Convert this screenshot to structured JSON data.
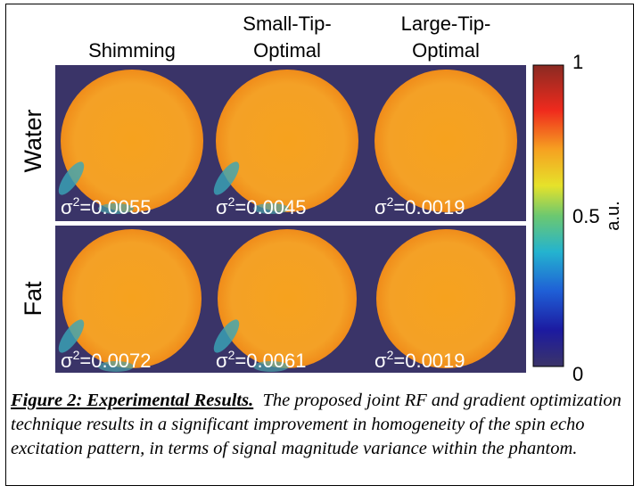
{
  "figure": {
    "columns": [
      [
        "Shimming"
      ],
      [
        "Small-Tip-",
        "Optimal"
      ],
      [
        "Large-Tip-",
        "Optimal"
      ]
    ],
    "rows": [
      {
        "label": "Water",
        "variances": [
          {
            "symbol": "σ",
            "sup": "2",
            "text": "=0.0055"
          },
          {
            "symbol": "σ",
            "sup": "2",
            "text": "=0.0045"
          },
          {
            "symbol": "σ",
            "sup": "2",
            "text": "=0.0019"
          }
        ]
      },
      {
        "label": "Fat",
        "variances": [
          {
            "symbol": "σ",
            "sup": "2",
            "text": "=0.0072"
          },
          {
            "symbol": "σ",
            "sup": "2",
            "text": "=0.0061"
          },
          {
            "symbol": "σ",
            "sup": "2",
            "text": "=0.0019"
          }
        ]
      }
    ],
    "colorbar": {
      "ticks": [
        0,
        0.5,
        1
      ],
      "label": "a.u."
    },
    "caption": {
      "title": "Figure 2: Experimental Results.",
      "text": "The proposed joint RF and gradient optimization technique results in a significant improvement in homogeneity of the spin echo excitation pattern, in terms of signal magnitude variance within the phantom."
    }
  }
}
